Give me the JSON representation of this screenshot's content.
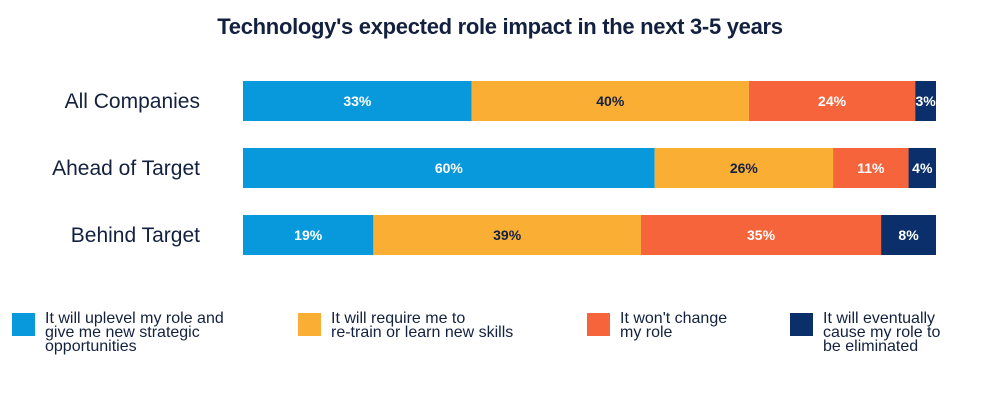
{
  "chart_data": {
    "type": "bar",
    "orientation": "horizontal",
    "stacked": true,
    "normalized": true,
    "title": "Technology's expected role impact in the next 3-5 years",
    "xlabel": "",
    "ylabel": "",
    "grid": false,
    "legend_position": "bottom",
    "categories": [
      "All Companies",
      "Ahead of Target",
      "Behind Target"
    ],
    "series": [
      {
        "name": "It will uplevel my role and give me new strategic opportunities",
        "legend_text": "It will uplevel my role and\ngive me new strategic\nopportunities",
        "color": "#0898dc",
        "label_color": "#ffffff",
        "values": [
          33,
          60,
          19
        ],
        "labels": [
          "33%",
          "60%",
          "19%"
        ]
      },
      {
        "name": "It will require me to re-train or learn new skills",
        "legend_text": "It will require me to\nre-train or learn new skills",
        "color": "#faae34",
        "label_color": "#13213f",
        "values": [
          40,
          26,
          39
        ],
        "labels": [
          "40%",
          "26%",
          "39%"
        ]
      },
      {
        "name": "It won't change my role",
        "legend_text": "It won't change\nmy role",
        "color": "#f5643a",
        "label_color": "#ffffff",
        "values": [
          24,
          11,
          35
        ],
        "labels": [
          "24%",
          "11%",
          "35%"
        ]
      },
      {
        "name": "It will eventually cause my role to be eliminated",
        "legend_text": "It will eventually\ncause my role to\nbe eliminated",
        "color": "#0b2f6b",
        "label_color": "#ffffff",
        "values": [
          3,
          4,
          8
        ],
        "labels": [
          "3%",
          "4%",
          "8%"
        ]
      }
    ]
  }
}
